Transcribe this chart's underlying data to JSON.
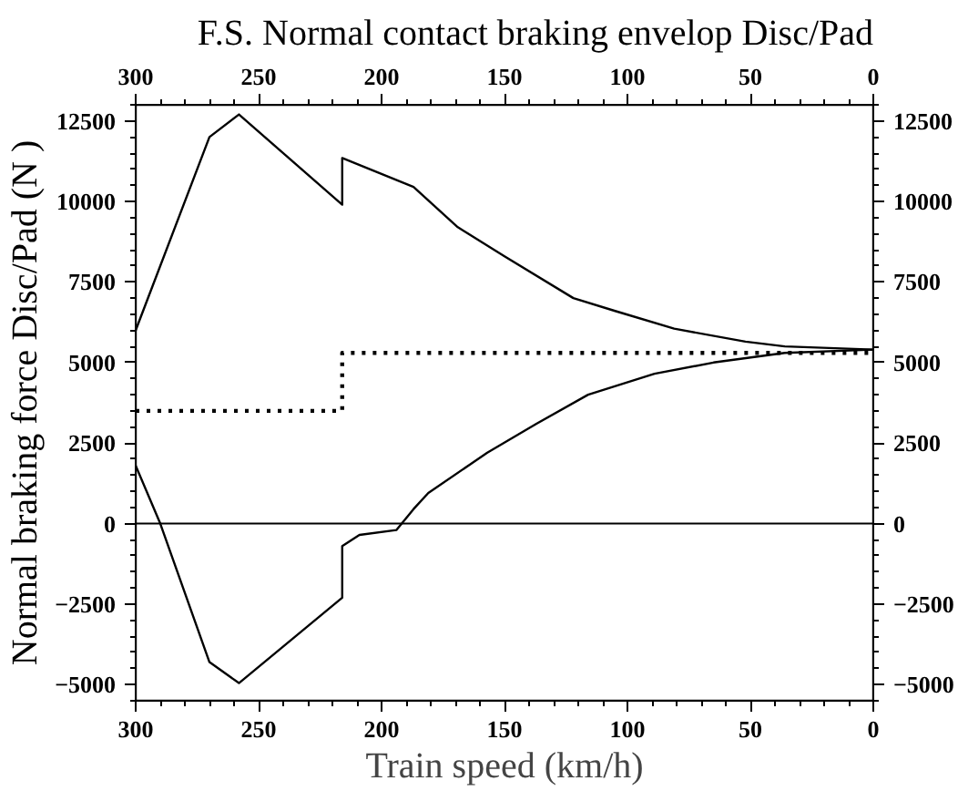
{
  "chart_data": {
    "type": "line",
    "title": "F.S. Normal contact braking envelop Disc/Pad",
    "xlabel": "Train speed (km/h)",
    "ylabel": "Normal braking force Disc/Pad (N )",
    "xlim": [
      300,
      0
    ],
    "xticks": [
      300,
      250,
      200,
      150,
      100,
      50,
      0
    ],
    "x2lim": [
      300,
      0
    ],
    "x2ticks": [
      300,
      250,
      200,
      150,
      100,
      50,
      0
    ],
    "ylim": [
      -5500,
      13000
    ],
    "yticks": [
      -5000,
      -2500,
      0,
      2500,
      5000,
      7500,
      10000,
      12500
    ],
    "y2lim": [
      -5500,
      13000
    ],
    "y2ticks": [
      -5000,
      -2500,
      0,
      2500,
      5000,
      7500,
      10000,
      12500
    ],
    "grid": false,
    "marker": "none",
    "series": [
      {
        "color": "#000000",
        "line_style": "solid",
        "x": [
          300,
          270,
          258,
          216,
          216,
          187,
          169,
          150,
          122,
          105,
          81,
          52,
          36,
          0
        ],
        "values": [
          6000,
          12000,
          12700,
          9900,
          11350,
          10450,
          9200,
          8300,
          7000,
          6600,
          6050,
          5650,
          5500,
          5400
        ]
      },
      {
        "color": "#000000",
        "line_style": "solid",
        "x": [
          300,
          290,
          270,
          258,
          216,
          216,
          209,
          194,
          187,
          181,
          157,
          137,
          116,
          89,
          65,
          36,
          0
        ],
        "values": [
          1800,
          0,
          -4300,
          -4950,
          -2300,
          -700,
          -350,
          -200,
          450,
          950,
          2200,
          3100,
          4000,
          4650,
          5000,
          5300,
          5400
        ]
      },
      {
        "color": "#000000",
        "line_style": "dotted",
        "x": [
          300,
          216,
          216,
          0
        ],
        "values": [
          3500,
          3500,
          5300,
          5300
        ]
      }
    ],
    "ref_lines": [
      {
        "axis": "y",
        "value": 0,
        "color": "#000000",
        "line_style": "solid"
      }
    ]
  }
}
